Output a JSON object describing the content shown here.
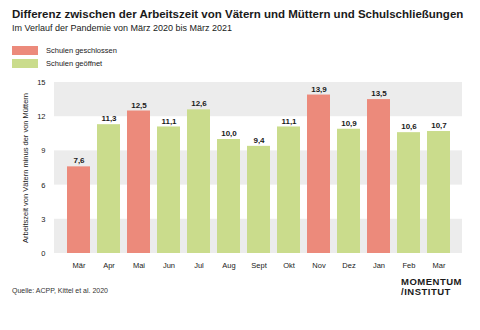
{
  "chart_data": {
    "type": "bar",
    "title": "Differenz zwischen der Arbeitszeit von Vätern und Müttern und Schulschließungen",
    "subtitle": "Im Verlauf der Pandemie von März 2020 bis März 2021",
    "y_label": "Arbeitszeit von Vätern minus der von Müttern",
    "categories": [
      "Mär",
      "Apr",
      "Mai",
      "Jun",
      "Jul",
      "Aug",
      "Sept",
      "Okt",
      "Nov",
      "Dez",
      "Jan",
      "Feb",
      "Mar"
    ],
    "series": [
      {
        "name": "Schulen geschlossen",
        "color": "#ec8a7b",
        "values": [
          7.6,
          null,
          12.5,
          null,
          null,
          null,
          null,
          null,
          13.9,
          null,
          13.5,
          null,
          null
        ],
        "value_labels": [
          "7,6",
          null,
          "12,5",
          null,
          null,
          null,
          null,
          null,
          "13,9",
          null,
          "13,5",
          null,
          null
        ]
      },
      {
        "name": "Schulen geöffnet",
        "color": "#cadc8c",
        "values": [
          null,
          11.3,
          null,
          11.1,
          12.6,
          10.0,
          9.4,
          11.1,
          null,
          10.9,
          null,
          10.6,
          10.7
        ],
        "value_labels": [
          null,
          "11,3",
          null,
          "11,1",
          "12,6",
          "10,0",
          "9,4",
          "11,1",
          null,
          "10,9",
          null,
          "10,6",
          "10,7"
        ]
      }
    ],
    "ylim": [
      0,
      15
    ],
    "yticks": [
      0,
      3,
      6,
      9,
      12,
      15
    ],
    "grid": true,
    "legend": "top-left",
    "data_labels": true,
    "source": "Quelle: ACPP, Kittel et al. 2020",
    "logo": [
      "MOMENTUM",
      "/INSTITUT"
    ]
  }
}
